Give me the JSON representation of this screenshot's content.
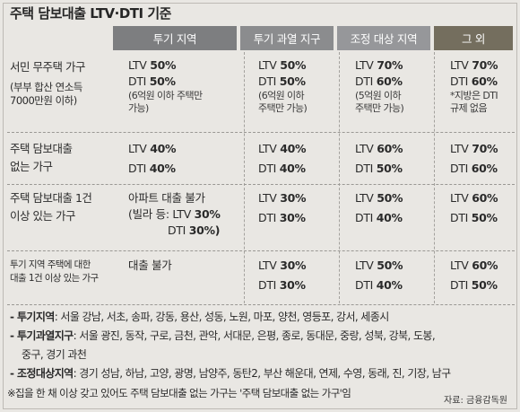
{
  "title": "주택 담보대출 LTV·DTI 기준",
  "headers": [
    "투기 지역",
    "투기 과열 지구",
    "조정 대상 지역",
    "그 외"
  ],
  "rows": [
    {
      "label": [
        "서민 무주택 가구",
        "(부부 합산 연소득",
        "7000만원 이하)"
      ],
      "cells": [
        {
          "lines": [
            {
              "p": "LTV ",
              "v": "50%"
            },
            {
              "p": "DTI ",
              "v": "50%"
            }
          ],
          "note": [
            "(6억원 이하 주택만",
            "가능)"
          ]
        },
        {
          "lines": [
            {
              "p": "LTV ",
              "v": "50%"
            },
            {
              "p": "DTI ",
              "v": "50%"
            }
          ],
          "note": [
            "(6억원 이하",
            "주택만 가능)"
          ]
        },
        {
          "lines": [
            {
              "p": "LTV ",
              "v": "70%"
            },
            {
              "p": "DTI ",
              "v": "60%"
            }
          ],
          "note": [
            "(5억원 이하",
            "주택만 가능)"
          ]
        },
        {
          "lines": [
            {
              "p": "LTV ",
              "v": "70%"
            },
            {
              "p": "DTI ",
              "v": "60%"
            }
          ],
          "note": [
            "*지방은 DTI",
            "규제 없음"
          ]
        }
      ]
    },
    {
      "label": [
        "주택 담보대출",
        "없는 가구"
      ],
      "cells": [
        {
          "lines": [
            {
              "p": "LTV ",
              "v": "40%"
            },
            {
              "p": "DTI ",
              "v": "40%"
            }
          ]
        },
        {
          "lines": [
            {
              "p": "LTV ",
              "v": "40%"
            },
            {
              "p": "DTI ",
              "v": "40%"
            }
          ]
        },
        {
          "lines": [
            {
              "p": "LTV ",
              "v": "60%"
            },
            {
              "p": "DTI ",
              "v": "50%"
            }
          ]
        },
        {
          "lines": [
            {
              "p": "LTV ",
              "v": "70%"
            },
            {
              "p": "DTI ",
              "v": "60%"
            }
          ]
        }
      ]
    },
    {
      "label": [
        "주택 담보대출 1건",
        "이상 있는 가구"
      ],
      "cells": [
        {
          "lines": [
            {
              "p": "아파트 대출 불가",
              "v": ""
            },
            {
              "p": "(빌라 등: LTV ",
              "v": "30%"
            },
            {
              "p": "DTI ",
              "v": "30%)"
            }
          ]
        },
        {
          "lines": [
            {
              "p": "LTV ",
              "v": "30%"
            },
            {
              "p": "DTI ",
              "v": "30%"
            }
          ]
        },
        {
          "lines": [
            {
              "p": "LTV ",
              "v": "50%"
            },
            {
              "p": "DTI ",
              "v": "40%"
            }
          ]
        },
        {
          "lines": [
            {
              "p": "LTV ",
              "v": "60%"
            },
            {
              "p": "DTI ",
              "v": "50%"
            }
          ]
        }
      ]
    },
    {
      "label": [
        "투기 지역 주택에 대한",
        "대출 1건 이상 있는 가구"
      ],
      "cells": [
        {
          "lines": [
            {
              "p": "대출 불가",
              "v": ""
            }
          ]
        },
        {
          "lines": [
            {
              "p": "LTV ",
              "v": "30%"
            },
            {
              "p": "DTI ",
              "v": "30%"
            }
          ]
        },
        {
          "lines": [
            {
              "p": "LTV ",
              "v": "50%"
            },
            {
              "p": "DTI ",
              "v": "40%"
            }
          ]
        },
        {
          "lines": [
            {
              "p": "LTV ",
              "v": "60%"
            },
            {
              "p": "DTI ",
              "v": "50%"
            }
          ]
        }
      ]
    }
  ],
  "footnotes": [
    {
      "key": "- 투기지역",
      "text": ": 서울 강남, 서초, 송파, 강동, 용산, 성동, 노원, 마포, 양천, 영등포, 강서, 세종시"
    },
    {
      "key": "- 투기과열지구",
      "text": ": 서울 광진, 동작, 구로, 금천, 관악, 서대문, 은평, 종로, 동대문, 중랑, 성북, 강북, 도봉,"
    },
    {
      "key": "",
      "text": "중구, 경기 과천"
    },
    {
      "key": "- 조정대상지역",
      "text": ": 경기 성남, 하남, 고양, 광명, 남양주, 동탄2, 부산 해운대, 연제, 수영, 동래, 진, 기장, 남구"
    },
    {
      "key": "",
      "text": "※집을 한 채 이상 갖고 있어도 주택 담보대출 없는 가구는 '주택 담보대출 없는 가구'임"
    }
  ],
  "source": "자료: 금융감독원"
}
